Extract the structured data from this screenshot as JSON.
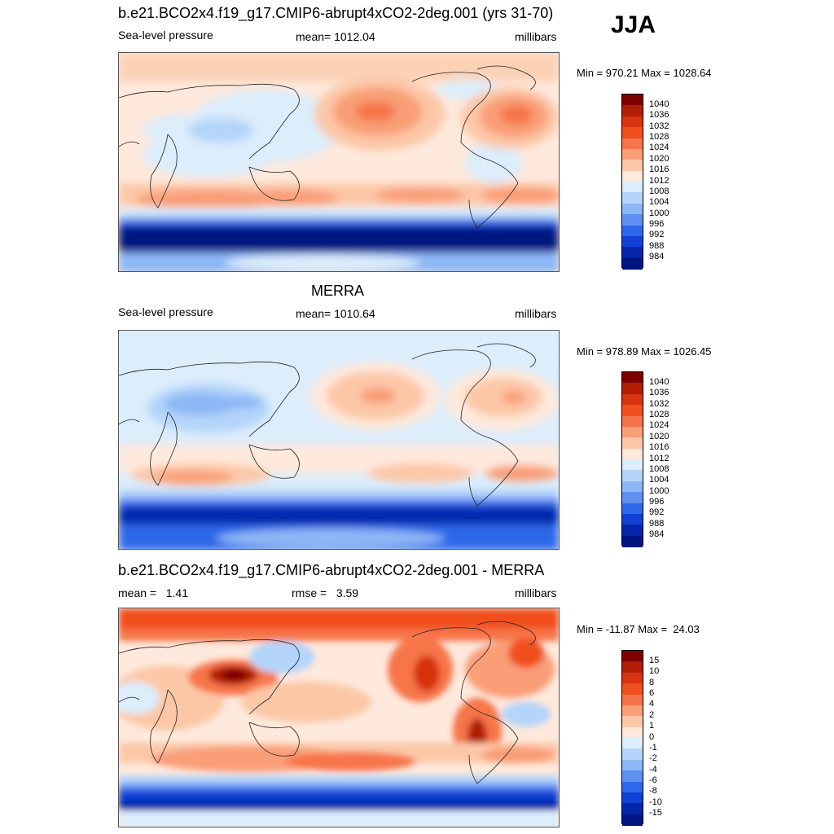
{
  "season": "JJA",
  "panels": [
    {
      "title": "b.e21.BCO2x4.f19_g17.CMIP6-abrupt4xCO2-2deg.001 (yrs 31-70)",
      "left_label": "Sea-level pressure",
      "center_label": "mean= 1012.04",
      "right_label": "millibars",
      "minmax": "Min = 970.21 Max = 1028.64",
      "colorbar": {
        "colors": [
          "#800000",
          "#b11d05",
          "#d83310",
          "#f0501e",
          "#f7744a",
          "#f99e77",
          "#fcc7a7",
          "#fee9dc",
          "#dcedfb",
          "#b4d4fa",
          "#8db7f6",
          "#5f90f2",
          "#2f67ea",
          "#1140d4",
          "#0525a8",
          "#001580"
        ],
        "labels": [
          "1040",
          "1036",
          "1032",
          "1028",
          "1024",
          "1020",
          "1016",
          "1012",
          "1008",
          "1004",
          "1000",
          "996",
          "992",
          "988",
          "984"
        ]
      }
    },
    {
      "title": "MERRA",
      "left_label": "Sea-level pressure",
      "center_label": "mean= 1010.64",
      "right_label": "millibars",
      "minmax": "Min = 978.89 Max = 1026.45",
      "colorbar": {
        "colors": [
          "#800000",
          "#b11d05",
          "#d83310",
          "#f0501e",
          "#f7744a",
          "#f99e77",
          "#fcc7a7",
          "#fee9dc",
          "#dcedfb",
          "#b4d4fa",
          "#8db7f6",
          "#5f90f2",
          "#2f67ea",
          "#1140d4",
          "#0525a8",
          "#001580"
        ],
        "labels": [
          "1040",
          "1036",
          "1032",
          "1028",
          "1024",
          "1020",
          "1016",
          "1012",
          "1008",
          "1004",
          "1000",
          "996",
          "992",
          "988",
          "984"
        ]
      }
    },
    {
      "title": "b.e21.BCO2x4.f19_g17.CMIP6-abrupt4xCO2-2deg.001 - MERRA",
      "left_label": "mean =   1.41",
      "center_label": "rmse =   3.59",
      "right_label": "millibars",
      "minmax": "Min = -11.87 Max =  24.03",
      "colorbar": {
        "colors": [
          "#800000",
          "#b11d05",
          "#d83310",
          "#f0501e",
          "#f7744a",
          "#f99e77",
          "#fcc7a7",
          "#fee9dc",
          "#dcedfb",
          "#b4d4fa",
          "#8db7f6",
          "#5f90f2",
          "#2f67ea",
          "#1140d4",
          "#0525a8",
          "#001580"
        ],
        "labels": [
          "15",
          "10",
          "8",
          "6",
          "4",
          "2",
          "1",
          "0",
          "-1",
          "-2",
          "-4",
          "-6",
          "-8",
          "-10",
          "-15"
        ]
      }
    }
  ]
}
